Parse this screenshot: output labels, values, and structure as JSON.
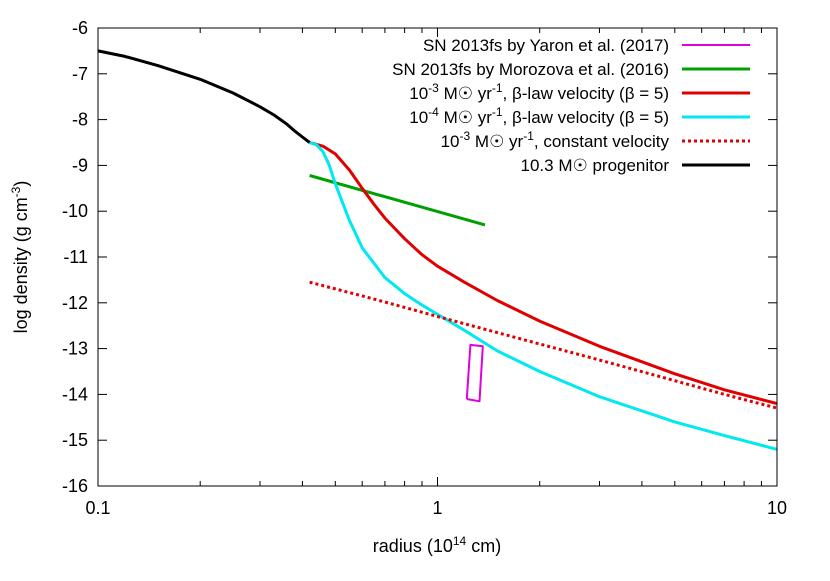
{
  "chart_data": {
    "type": "line",
    "xlabel": "radius (10^14 cm)",
    "ylabel": "log density (g cm^-3)",
    "xscale": "log",
    "xlim": [
      0.1,
      10
    ],
    "ylim": [
      -16,
      -6
    ],
    "x_ticks": [
      "0.1",
      "1",
      "10"
    ],
    "y_ticks": [
      "-6",
      "-7",
      "-8",
      "-9",
      "-10",
      "-11",
      "-12",
      "-13",
      "-14",
      "-15",
      "-16"
    ],
    "legend_position": "top-right",
    "legend": [
      "SN 2013fs by Yaron et al. (2017)",
      "SN 2013fs by Morozova et al. (2016)",
      "10^-3 M☉ yr^-1, β-law velocity (β = 5)",
      "10^-4 M☉ yr^-1, β-law velocity (β = 5)",
      "10^-3 M☉ yr^-1, constant velocity",
      "10.3 M☉ progenitor"
    ],
    "series": [
      {
        "name": "SN 2013fs by Yaron et al. (2017)",
        "color": "#e000e0",
        "style": "box",
        "x": [
          1.22,
          1.33,
          1.36,
          1.25,
          1.22
        ],
        "y": [
          -14.1,
          -14.15,
          -12.95,
          -12.92,
          -14.1
        ]
      },
      {
        "name": "SN 2013fs by Morozova et al. (2016)",
        "color": "#00a000",
        "style": "solid",
        "x": [
          0.42,
          1.38
        ],
        "y": [
          -9.22,
          -10.3
        ]
      },
      {
        "name": "10^-3 M☉ yr^-1, β-law velocity (β = 5)",
        "color": "#e00000",
        "style": "solid",
        "x": [
          0.42,
          0.46,
          0.5,
          0.55,
          0.6,
          0.65,
          0.7,
          0.8,
          0.9,
          1.0,
          1.2,
          1.5,
          2.0,
          3.0,
          5.0,
          7.0,
          10.0
        ],
        "y": [
          -8.5,
          -8.58,
          -8.75,
          -9.1,
          -9.5,
          -9.85,
          -10.15,
          -10.6,
          -10.95,
          -11.2,
          -11.55,
          -11.95,
          -12.4,
          -12.95,
          -13.55,
          -13.9,
          -14.2
        ]
      },
      {
        "name": "10^-4 M☉ yr^-1, β-law velocity (β = 5)",
        "color": "#00e8f0",
        "style": "solid",
        "x": [
          0.42,
          0.44,
          0.46,
          0.48,
          0.5,
          0.55,
          0.6,
          0.7,
          0.8,
          0.9,
          1.0,
          1.2,
          1.5,
          2.0,
          3.0,
          5.0,
          7.0,
          10.0
        ],
        "y": [
          -8.5,
          -8.55,
          -8.7,
          -9.0,
          -9.4,
          -10.2,
          -10.8,
          -11.45,
          -11.8,
          -12.05,
          -12.25,
          -12.6,
          -13.05,
          -13.5,
          -14.05,
          -14.6,
          -14.9,
          -15.2
        ]
      },
      {
        "name": "10^-3 M☉ yr^-1, constant velocity",
        "color": "#e00000",
        "style": "dotted",
        "x": [
          0.42,
          0.6,
          0.8,
          1.0,
          1.5,
          2.0,
          3.0,
          5.0,
          7.0,
          10.0
        ],
        "y": [
          -11.55,
          -11.85,
          -12.1,
          -12.3,
          -12.65,
          -12.9,
          -13.25,
          -13.7,
          -14.0,
          -14.3
        ]
      },
      {
        "name": "10.3 M☉ progenitor",
        "color": "#000000",
        "style": "solid",
        "x": [
          0.1,
          0.12,
          0.15,
          0.2,
          0.25,
          0.3,
          0.33,
          0.36,
          0.38,
          0.4,
          0.42
        ],
        "y": [
          -6.5,
          -6.62,
          -6.82,
          -7.12,
          -7.42,
          -7.72,
          -7.9,
          -8.1,
          -8.25,
          -8.38,
          -8.5
        ]
      }
    ]
  }
}
